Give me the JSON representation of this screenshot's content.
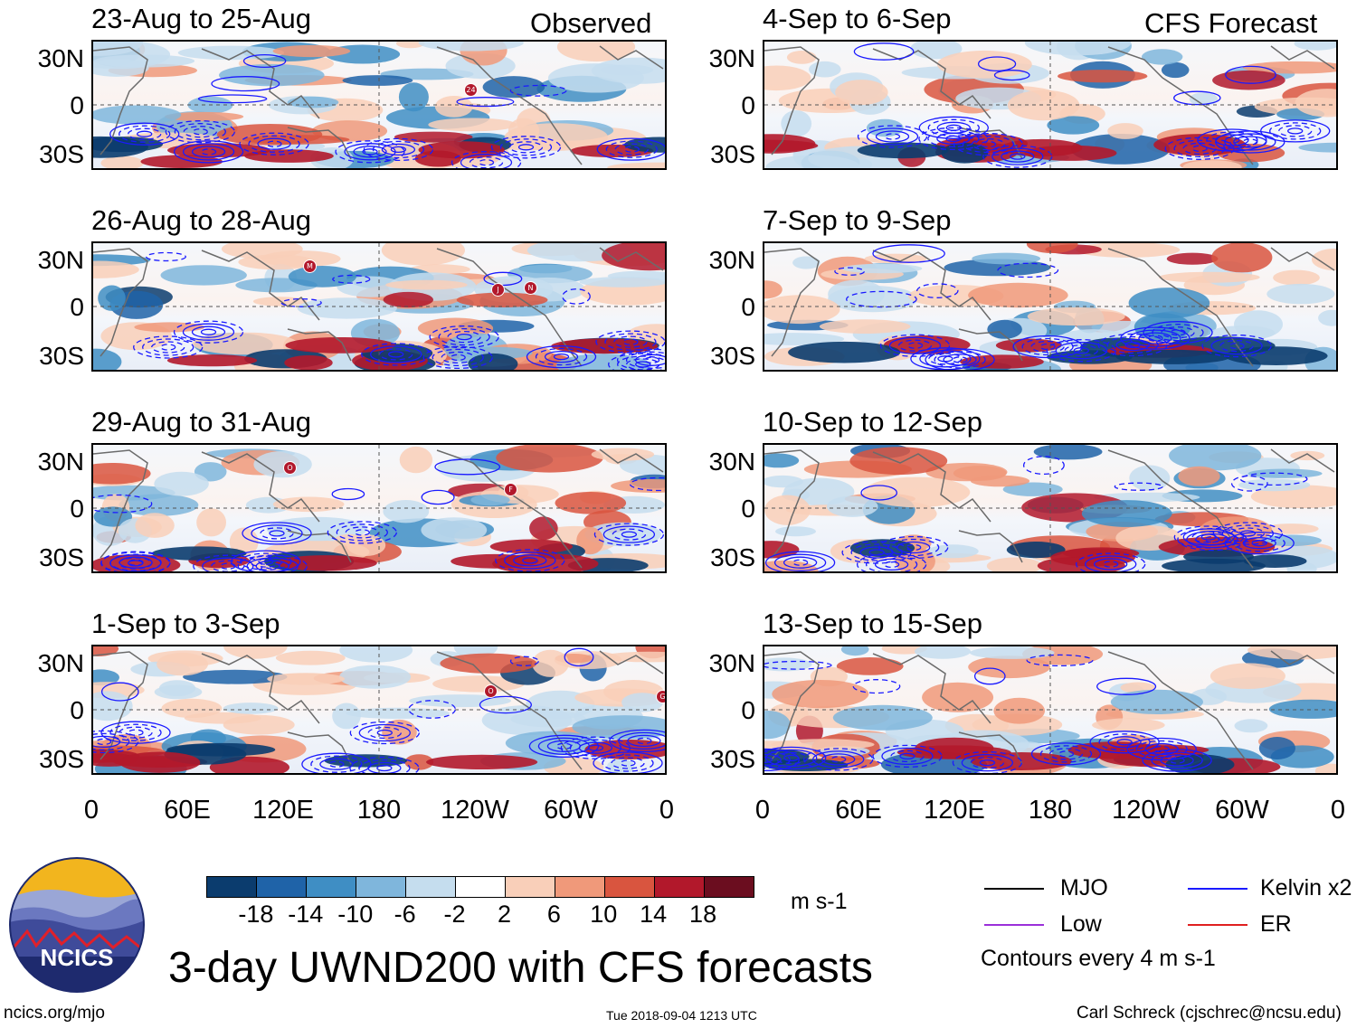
{
  "figure": {
    "title": "3-day UWND200 with CFS forecasts",
    "observed_label": "Observed",
    "forecast_label": "CFS Forecast",
    "observed_panels": [
      {
        "period": "23-Aug to 25-Aug",
        "storms": [
          "24"
        ]
      },
      {
        "period": "26-Aug to 28-Aug",
        "storms": [
          "J",
          "M",
          "N"
        ]
      },
      {
        "period": "29-Aug to 31-Aug",
        "storms": [
          "O",
          "F"
        ]
      },
      {
        "period": "1-Sep to 3-Sep",
        "storms": [
          "O",
          "G"
        ]
      }
    ],
    "forecast_panels": [
      {
        "period": "4-Sep to 6-Sep"
      },
      {
        "period": "7-Sep to 9-Sep"
      },
      {
        "period": "10-Sep to 12-Sep"
      },
      {
        "period": "13-Sep to 15-Sep"
      }
    ],
    "lat_labels": [
      "30N",
      "0",
      "30S"
    ],
    "lon_labels": [
      "0",
      "60E",
      "120E",
      "180",
      "120W",
      "60W",
      "0"
    ]
  },
  "colorbar": {
    "units": "m s-1",
    "ticks": [
      "-18",
      "-14",
      "-10",
      "-6",
      "-2",
      "2",
      "6",
      "10",
      "14",
      "18"
    ],
    "colors": [
      "#0b3c6e",
      "#1f63a8",
      "#3f8ec4",
      "#7fb6dc",
      "#c5ddee",
      "#ffffff",
      "#f9cfb9",
      "#f0997a",
      "#d9553f",
      "#b2182b",
      "#6b0d1f"
    ]
  },
  "legend": {
    "items": [
      {
        "label": "MJO",
        "color": "#000000"
      },
      {
        "label": "Kelvin x2",
        "color": "#1a1aff"
      },
      {
        "label": "Low",
        "color": "#9b30d9"
      },
      {
        "label": "ER",
        "color": "#e02020"
      }
    ],
    "contour_note": "Contours every 4 m s-1"
  },
  "logo": {
    "text": "NCICS"
  },
  "footer": {
    "left": "ncics.org/mjo",
    "center": "Tue 2018-09-04 1213 UTC",
    "right": "Carl Schreck (cjschrec@ncsu.edu)"
  }
}
